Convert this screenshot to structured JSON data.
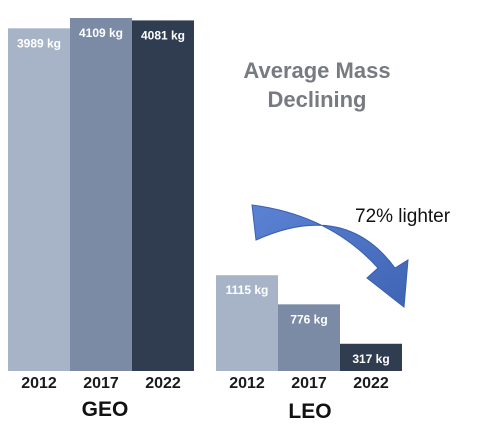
{
  "chart_data": {
    "type": "bar",
    "title_lines": [
      "Average Mass",
      "Declining"
    ],
    "unit": "kg",
    "annotation": "72% lighter",
    "ylim": [
      0,
      4200
    ],
    "legend": "none",
    "grid": false,
    "groups": [
      {
        "name": "GEO",
        "categories": [
          "2012",
          "2017",
          "2022"
        ],
        "values": [
          3989,
          4109,
          4081
        ],
        "labels": [
          "3989 kg",
          "4109 kg",
          "4081 kg"
        ]
      },
      {
        "name": "LEO",
        "categories": [
          "2012",
          "2017",
          "2022"
        ],
        "values": [
          1115,
          776,
          317
        ],
        "labels": [
          "1115 kg",
          "776 kg",
          "317 kg"
        ]
      }
    ],
    "colors": [
      "#a7b4c8",
      "#7b8ba6",
      "#303d50"
    ],
    "arrow_color": "#4a72c4"
  }
}
